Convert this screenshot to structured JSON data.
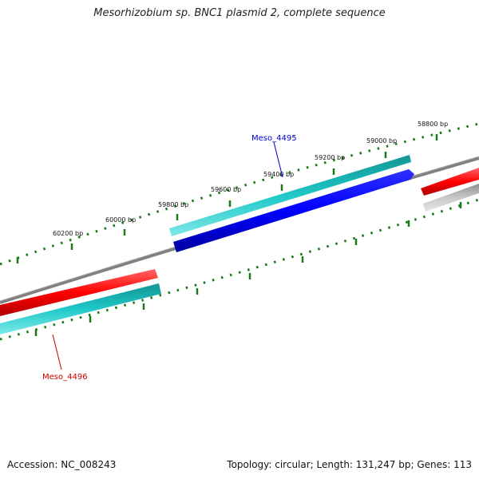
{
  "title": "Mesorhizobium sp. BNC1 plasmid 2, complete sequence",
  "footer": {
    "accession": "Accession: NC_008243",
    "stats": "Topology: circular; Length: 131,247 bp; Genes: 113"
  },
  "ticks": [
    {
      "label": "58800 bp"
    },
    {
      "label": "59000 bp"
    },
    {
      "label": "59200 bp"
    },
    {
      "label": "59400 bp"
    },
    {
      "label": "59600 bp"
    },
    {
      "label": "59800 bp"
    },
    {
      "label": "60000 bp"
    },
    {
      "label": "60200 bp"
    }
  ],
  "genes": [
    {
      "label": "Meso_4495",
      "color": "#0000cc"
    },
    {
      "label": "Meso_4496",
      "color": "#cc0000"
    }
  ],
  "colors": {
    "red_feature": "#ff0000",
    "cyan_feature": "#20c8c8",
    "blue_feature": "#0000ff",
    "gray_feature": "#c8c8c8",
    "backbone": "#808080",
    "ticks": "#1a7a1a"
  }
}
